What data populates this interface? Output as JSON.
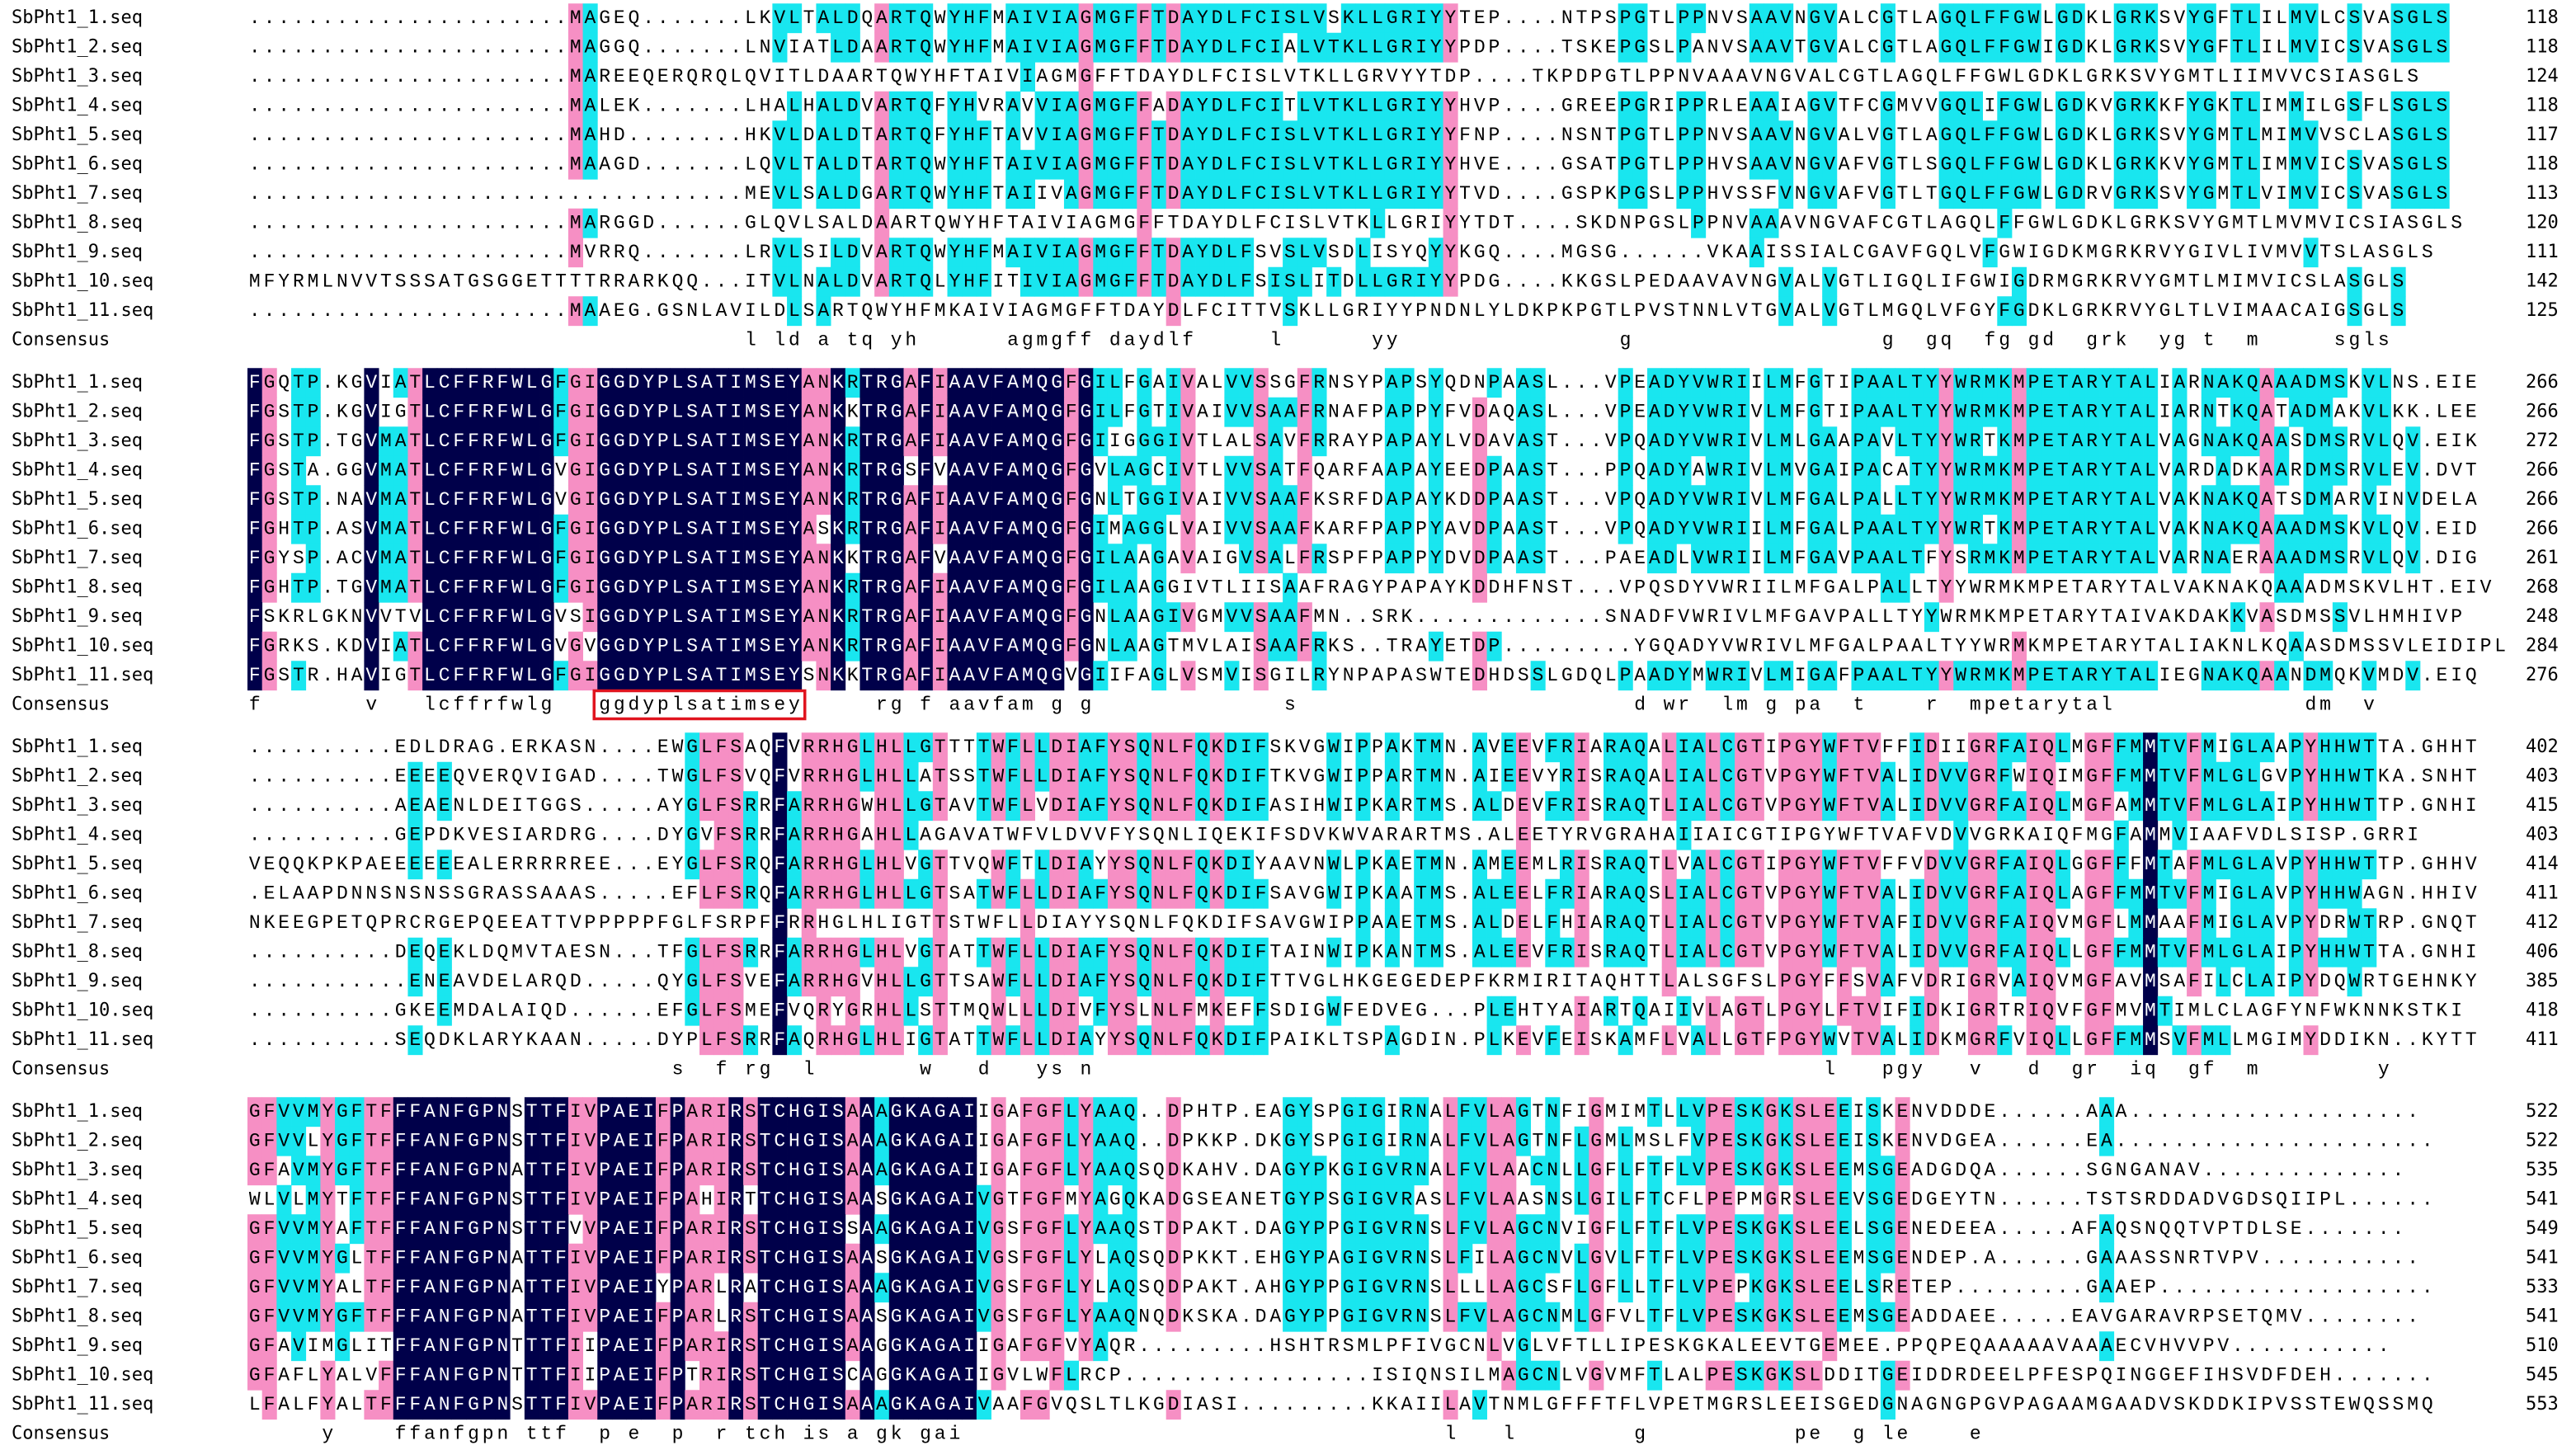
{
  "blocks": [
    {
      "rows": [
        {
          "name": "SbPht1_1.seq",
          "sequence": "......................MAGEQ.......LKVLTALDQARTQWYHFMAIVIAGMGFFTDAYDLFCISLVSKLLGRIYYTEP....NTPSPGTLPPNVSAAVNGVALCGTLAGQLFFGWLGDKLGRKSVYGFTLILMVLCSVASGLS",
          "end": "118"
        },
        {
          "name": "SbPht1_2.seq",
          "sequence": "......................MAGGQ.......LNVIATLDAARTQWYHFMAIVIAGMGFFTDAYDLFCIALVTKLLGRIYYPDP....TSKEPGSLPANVSAAVTGVALCGTLAGQLFFGWIGDKLGRKSVYGFTLILMVICSVASGLS",
          "end": "118"
        },
        {
          "name": "SbPht1_3.seq",
          "sequence": "......................MAREEQERQRQLQVITLDAARTQWYHFTAIVIAGMGFFTDAYDLFCISLVTKLLGRVYYTDP....TKPDPGTLPPNVAAAVNGVALCGTLAGQLFFGWLGDKLGRKSVYGMTLIIMVVCSIASGLS",
          "end": "124"
        },
        {
          "name": "SbPht1_4.seq",
          "sequence": "......................MALEK.......LHALHALDVARTQFYHVRAVVIAGMGFFADAYDLFCITLVTKLLGRIYYHVP....GREEPGRIPPRLEAAIAGVTFCGMVVGQLIFGWLGDKVGRKKFYGKTLIMMILGSFLSGLS",
          "end": "118"
        },
        {
          "name": "SbPht1_5.seq",
          "sequence": "......................MAHD........HKVLDALDTARTQFYHFTAVVIAGMGFFTDAYDLFCISLVTKLLGRIYYFNP....NSNTPGTLPPNVSAAVNGVALVGTLAGQLFFGWLGDKLGRKSVYGMTLMIMVVSCLASGLS",
          "end": "117"
        },
        {
          "name": "SbPht1_6.seq",
          "sequence": "......................MAAGD.......LQVLTALDTARTQWYHFTAIVIAGMGFFTDAYDLFCISLVTKLLGRIYYHVE....GSATPGTLPPHVSAAVNGVAFVGTLSGQLFFGWLGDKLGRKKVYGMTLIMMVICSVASGLS",
          "end": "118"
        },
        {
          "name": "SbPht1_7.seq",
          "sequence": "..................................MEVLSALDGARTQWYHFTAIIVAGMGFFTDAYDLFCISLVTKLLGRIYYTVD....GSPKPGSLPPHVSSFVNGVAFVGTLTGQLFFGWLGDRVGRKSVYGMTLVIMVICSVASGLS",
          "end": "113"
        },
        {
          "name": "SbPht1_8.seq",
          "sequence": "......................MARGGD......GLQVLSALDAARTQWYHFTAIVIAGMGFFTDAYDLFCISLVTKLLGRIYYTDT....SKDNPGSLPPNVAAAVNGVAFCGTLAGQLFFGWLGDKLGRKSVYGMTLMVMVICSIASGLS",
          "end": "120"
        },
        {
          "name": "SbPht1_9.seq",
          "sequence": "......................MVRRQ.......LRVLSILDVARTQWYHFMAIVIAGMGFFTDAYDLFSVSLVSDLISYQYYKGQ....MGSG......VKAAISSIALCGAVFGQLVFGWIGDKMGRKRVYGIVLIVMVVTSLASGLS",
          "end": "111"
        },
        {
          "name": "SbPht1_10.seq",
          "sequence": "MFYRMLNVVTSSSATGSGGETTTTRRARKQQ...ITVLNALDVARTQLYHFITIVIAGMGFFTDAYDLFSISLITDLLGRIYYPDG....KKGSLPEDAAVAVNGVALVGTLIGQLIFGWIGDRMGRKRVYGMTLMIMVICSLASGLS",
          "end": "142"
        },
        {
          "name": "SbPht1_11.seq",
          "sequence": "......................MAAEG.GSNLAVILDLSARTQWYHFMKAIVIAGMGFFTDAYDLFCITTVSKLLGRIYYPNDNLYLDKPKPGTLPVSTNNLVTGVALVGTLMGQLVFGYFGDKLGRKRVYGLTLVIMAACAIGSGLS",
          "end": "125"
        }
      ],
      "consensus_label": "Consensus",
      "consensus": "                                  l ld a tq yh      agmgff daydlf     l      yy               g                 g  gq  fg gd  grk  yg t  m     sgls"
    },
    {
      "rows": [
        {
          "name": "SbPht1_1.seq",
          "sequence": "FGQTP.KGVIATLCFFRFWLGFGIGGDYPLSATIMSEYANKRTRGAFIAAVFAMQGFGILFGAIVALVVSSGFRNSYPAPSYQDNPAASL...VPEADYVWRIILMFGTIPAALTYYWRMKMPETARYTALIARNAKQAAADMSKVLNS.EIE",
          "end": "266"
        },
        {
          "name": "SbPht1_2.seq",
          "sequence": "FGSTP.KGVIGTLCFFRFWLGFGIGGDYPLSATIMSEYANKKTRGAFIAAVFAMQGFGILFGTIVAIVVSAAFRNAFPAPPYFVDAQASL...VPEADYVWRIVLMFGTIPAALTYYWRMKMPETARYTALIARNTKQATADMAKVLKK.LEE",
          "end": "266"
        },
        {
          "name": "SbPht1_3.seq",
          "sequence": "FGSTP.TGVMATLCFFRFWLGFGIGGDYPLSATIMSEYANKRTRGAFIAAVFAMQGFGIIGGGIVTLALSAVFRRAYPAPAYLVDAVAST...VPQADYVWRIVLMLGAAPAVLTYYWRTKMPETARYTALVAGNAKQAASDMSRVLQV.EIK",
          "end": "272"
        },
        {
          "name": "SbPht1_4.seq",
          "sequence": "FGSTA.GGVMATLCFFRFWLGVGIGGDYPLSATIMSEYANKRTRGSFVAAVFAMQGFGVLAGCIVTLVVSATFQARFAAPAYEEDPAAST...PPQADYAWRIVLMVGAIPACATYYWRMKMPETARYTALVARDADKAARDMSRVLEV.DVT",
          "end": "266"
        },
        {
          "name": "SbPht1_5.seq",
          "sequence": "FGSTP.NAVMATLCFFRFWLGVGIGGDYPLSATIMSEYANKRTRGAFIAAVFAMQGFGNLTGGIVAIVVSAAFKSRFDAPAYKDDPAAST...VPQADYVWRIVLMFGALPALLTYYWRMKMPETARYTALVAKNAKQATSDMARVINVDELA",
          "end": "266"
        },
        {
          "name": "SbPht1_6.seq",
          "sequence": "FGHTP.ASVMATLCFFRFWLGFGIGGDYPLSATIMSEYASKRTRGAFIAAVFAMQGFGIMAGGLVAIVVSAAFKARFPAPPYAVDPAAST...VPQADYVWRIILMFGALPAALTYYWRTKMPETARYTALVAKNAKQAAADMSKVLQV.EID",
          "end": "266"
        },
        {
          "name": "SbPht1_7.seq",
          "sequence": "FGYSP.ACVMATLCFFRFWLGFGIGGDYPLSATIMSEYANKKTRGAFVAAVFAMQGFGILAAGAVAIGVSALFRSPFPAPPYDVDPAAST...PAEADLVWRIILMFGAVPAALTFYSRMKMPETARYTALVARNAERAAADMSRVLQV.DIG",
          "end": "261"
        },
        {
          "name": "SbPht1_8.seq",
          "sequence": "FGHTP.TGVMATLCFFRFWLGFGIGGDYPLSATIMSEYANKRTRGAFIAAVFAMQGFGILAAGGIVTLIISAAFRAGYPAPAYKDDHFNST...VPQSDYVWRIILMFGALPALLTYYWRMKMPETARYTALVAKNAKQAAADMSKVLHT.EIV",
          "end": "268"
        },
        {
          "name": "SbPht1_9.seq",
          "sequence": "FSKRLGKNVVTVLCFFRFWLGVSIGGDYPLSATIMSEYANKRTRGAFIAAVFAMQGFGNLAAGIVGMVVSAAFMN..SRK.............SNADFVWRIVLMFGAVPALLTYYWRMKMPETARYTAIVAKDAKKVASDMSSVLHMHIVP",
          "end": "248"
        },
        {
          "name": "SbPht1_10.seq",
          "sequence": "FGRKS.KDVIATLCFFRFWLGVGVGGDYPLSATIMSEYANKRTRGAFIAAVFAMQGFGNLAAGTMVLAISAAFRKS..TRAYETDP.........YGQADYVWRIVLMFGALPAALTYYWRMKMPETARYTALIAKNLKQAASDMSSVLEIDIPL",
          "end": "284"
        },
        {
          "name": "SbPht1_11.seq",
          "sequence": "FGSTR.HAVIGTLCFFRFWLGFGIGGDYPLSATIMSEYSNKKTRGAFIAAVFAMQGVGIIFAGLVSMVISGILRYNPAPASWTEDHDSSLGDQLPAADYMWRIVLMIGAFPAALTYYWRMKMPETARYTALIEGNAKQAANDMQKVMDV.EIQ",
          "end": "276"
        }
      ],
      "consensus_label": "Consensus",
      "consensus": "f       v   lcffrfwlg   ggdyplsatimsey     rg f aavfam g g             s                       d wr  lm g pa  t    r  mpetarytal             dm  v"
    },
    {
      "rows": [
        {
          "name": "SbPht1_1.seq",
          "sequence": "..........EDLDRAG.ERKASN....EWGLFSAQFVRRHGLHLLGTTTTWFLLDIAFYSQNLFQKDIFSKVGWIPPAKTMN.AVEEVFRIARAQALIALCGTIPGYWFTVFFIDIIGRFAIQLMGFFMMTVFMIGLAAPYHHWTTA.GHHT",
          "end": "402"
        },
        {
          "name": "SbPht1_2.seq",
          "sequence": "..........EEEEQVERQVIGAD....TWGLFSVQFVRRHGLHLLATSSTWFLLDIAFYSQNLFQKDIFTKVGWIPPARTMN.AIEEVYRISRAQALIALCGTVPGYWFTVALIDVVGRFWIQIMGFFMMTVFMLGLGVPYHHWTKA.SNHT",
          "end": "403"
        },
        {
          "name": "SbPht1_3.seq",
          "sequence": "..........AEAENLDEITGGS.....AYGLFSRRFARRHGWHLLGTAVTWFLVDIAFYSQNLFQKDIFASIHWIPKARTMS.ALDEVFRISRAQTLIALCGTVPGYWFTVALIDVVGRFAIQLMGFAMMTVFMLGLAIPYHHWTTP.GNHI",
          "end": "415"
        },
        {
          "name": "SbPht1_4.seq",
          "sequence": "..........GEPDKVESIARDRG....DYGVFSRRFARRHGAHLLAGAVATWFVLDVVFYSQNLIQEKIFSDVKWVARARTMS.ALEETYRVGRAHAIIAICGTIPGYWFTVAFVDVVGRKAIQFMGFAMMVIAAFVDLSISP.GRRI",
          "end": "403"
        },
        {
          "name": "SbPht1_5.seq",
          "sequence": "VEQQKPKPAEEEEEEALERRRRREE...EYGLFSRQFARRHGLHLVGTTVQWFTLDIAYYSQNLFQKDIYAAVNWLPKAETMN.AMEEMLRISRAQTLVALCGTIPGYWFTVFFVDVVGRFAIQLGGFFFMTAFMLGLAVPYHHWTTP.GHHV",
          "end": "414"
        },
        {
          "name": "SbPht1_6.seq",
          "sequence": ".ELAAPDNNSNSNSSGRASSAAAS.....EFLFSRQFARRHGLHLLGTSATWFLLDIAFYSQNLFQKDIFSAVGWIPKAATMS.ALEELFRIARAQSLIALCGTVPGYWFTVALIDVVGRFAIQLAGFFMMTVFMIGLAVPYHHWAGN.HHIV",
          "end": "411"
        },
        {
          "name": "SbPht1_7.seq",
          "sequence": "NKEEGPETQPRCRGEPQEEATTVPPPPPFGLFSRPFFRRHGLHLIGTTSTWFLLDIAYYSQNLFQKDIFSAVGWIPPAAETMS.ALDELFHIARAQTLIALCGTVPGYWFTVAFIDVVGRFAIQVMGFLMMAAFMIGLAVPYDRWTRP.GNQT",
          "end": "412"
        },
        {
          "name": "SbPht1_8.seq",
          "sequence": "..........DEQEKLDQMVTAESN...TFGLFSRRFARRHGLHLVGTATTWFLLDIAFYSQNLFQKDIFTAINWIPKANTMS.ALEEVFRISRAQTLIALCGTVPGYWFTVALIDVVGRFAIQLLGFFMMTVFMLGLAIPYHHWTTA.GNHI",
          "end": "406"
        },
        {
          "name": "SbPht1_9.seq",
          "sequence": "...........ENEAVDELARQD.....QYGLFSVEFARRHGVHLLGTTSAWFLLDIAFYSQNLFQKDIFTTVGLHKGEGEDEPFKRMIRITAQHTTLALSGFSLPGYFFSVAFVDRIGRVAIQVMGFAVMSAFILCLAIPYDQWRTGEHNKY",
          "end": "385"
        },
        {
          "name": "SbPht1_10.seq",
          "sequence": "..........GKEEMDALAIQD......EFGLFSMEFVQRYGRHLLSTTMQWLLLDIVFYSLNLFMKEFFSDIGWFEDVEG...PLEHTYAIARTQAIIVLAGTLPGYLFTVIFIDKIGRTRIQVFGFMVMTIMLCLAGFYNFWKNNKSTKI",
          "end": "418"
        },
        {
          "name": "SbPht1_11.seq",
          "sequence": "..........SEQDKLARYKAAN.....DYPLFSRRFAQRHGLHLIGTATTWFLLDIAYYSQNLFQKDIFPAIKLTSPAGDIN.PLKEVFEISKAMFLVALLGTFPGYWVTVALIDKMGRFVIQLLGFFMMSVFMLLMGIMYDDIKN..KYTT",
          "end": "411"
        }
      ],
      "consensus_label": "Consensus",
      "consensus": "                             s  f rg  l       w   d   ys n                                                  l   pgy   v   d  gr  iq  gf  m        y"
    },
    {
      "rows": [
        {
          "name": "SbPht1_1.seq",
          "sequence": "GFVVMYGFTFFFANFGPNSTTFIVPAEIFPARIRSTCHGISAAAGKAGAIIGAFGFLYAAQ..DPHTP.EAGYSPGIGIRNALFVLAGTNFIGMIMTLLVPESKGKSLEEISKENVDDDE......AAA....................",
          "end": "522"
        },
        {
          "name": "SbPht1_2.seq",
          "sequence": "GFVVLYGFTFFFANFGPNSTTFIVPAEIFPARIRSTCHGISAAAGKAGAIIGAFGFLYAAQ..DPKKP.DKGYSPGIGIRNALFVLAGTNFLGMLMSLFVPESKGKSLEEISKENVDGEA......EA......................",
          "end": "522"
        },
        {
          "name": "SbPht1_3.seq",
          "sequence": "GFAVMYGFTFFFANFGPNATTFIVPAEIFPARIRSTCHGISAAAGKAGAIIGAFGFLYAAQSQDKAHV.DAGYPKGIGVRNALFVLAACNLLGFLFTFLVPESKGKSLEEMSGEADGDQA......SGNGANAV..............",
          "end": "535"
        },
        {
          "name": "SbPht1_4.seq",
          "sequence": "WLVLMYTFTFFFANFGPNSTTFIVPAEIFPAHIRTTCHGISAASGKAGAIVGTFGFMYAGQKADGSEANETGYPSGIGVRASLFVLAASNSLGILFTCFLPEPMGRSLEEVSGEDGEYTN......TSTSRDDADVGDSQIIPL......",
          "end": "541"
        },
        {
          "name": "SbPht1_5.seq",
          "sequence": "GFVVMYAFTFFFANFGPNSTTFVVPAEIFPARIRSTCHGISSAAGKAGAIVGSFGFLYAAQSTDPAKT.DAGYPPGIGVRNSLFVLAGCNVIGFLFTFLVPESKGKSLEELSGENEDEEA.....AFAQSNQQTVPTDLSE.......",
          "end": "549"
        },
        {
          "name": "SbPht1_6.seq",
          "sequence": "GFVVMYGLTFFFANFGPNATTFIVPAEIFPARIRSTCHGISAASGKAGAIVGSFGFLYLAQSQDPKKT.EHGYPAGIGVRNSLFILAGCNVLGVLFTFLVPESKGKSLEEMSGENDEP.A......GAAASSNRTVPV...........",
          "end": "541"
        },
        {
          "name": "SbPht1_7.seq",
          "sequence": "GFVVMYALTFFFANFGPNATTFIVPAEIYPARLRATCHGISAAAGKAGAIVGSFGFLYLAQSQDPAKT.AHGYPPGIGVRNSLLLLAGCSFLGFLLTFLVPEPKGKSLEELSRETEP.........GAAEP...................",
          "end": "533"
        },
        {
          "name": "SbPht1_8.seq",
          "sequence": "GFVVMYGFTFFFANFGPNATTFIVPAEIFPARLRSTCHGISAASGKAGAIVGSFGFLYAAQNQDKSKA.DAGYPPGIGVRNSLFVLAGCNMLGFVLTFLVPESKGKSLEEMSGEADDAEE.....EAVGARAVRPSETQMV........",
          "end": "541"
        },
        {
          "name": "SbPht1_9.seq",
          "sequence": "GFAVIMGLITFFANFGPNTTTFIIPAEIFPARIRSTCHGISAAGGKAGAIIGAFGFVYAQR.........HSHTRSMLPFIVGCNLVGLVFTLLIPESKGKALEEVTGEMEE.PPQPEQAAAAAVAAAECVHVVPV...........",
          "end": "510"
        },
        {
          "name": "SbPht1_10.seq",
          "sequence": "GFAFLYALVFFFANFGPNTTTFIIPAEIFPTRIRSTCHGISCAGGKAGAIIGVLWFLRCP.................ISIQNSILMAGCNLVGVMFTLALPESKGKSLDDITGEIDDRDEELPFESPQINGGEFIHSVDFDEH.......",
          "end": "545"
        },
        {
          "name": "SbPht1_11.seq",
          "sequence": "LFALFYALTFFFANFGPNSTTFIVPAEIFPARIRSTCHGISAAAGKAGAIVAAFGVQSLTLKGDIASI.........KKAIILAVTNMLGFFFTFLVPETMGRSLEEISGEDGNAGNGPGVPAGAAMGAADVSKDDKIPVSSTEWQSSMQ",
          "end": "553"
        }
      ],
      "consensus_label": "Consensus",
      "consensus": "     y    ffanfgpn ttf  p e  p  r tch is a gk gai                                 l   l        g          pe  g le    e"
    }
  ]
}
